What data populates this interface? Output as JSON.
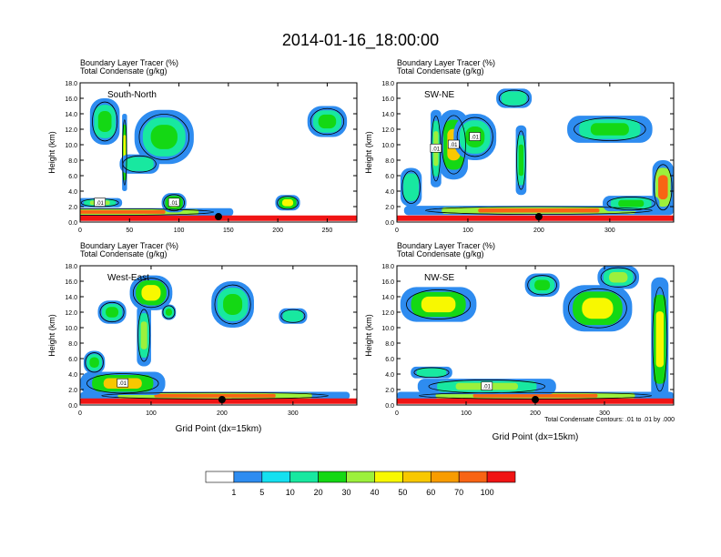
{
  "title": "2014-01-16_18:00:00",
  "panel_line1": "Boundary Layer Tracer    (%)",
  "panel_line2": "Total Condensate    (g/kg)",
  "ylabel": "Height (km)",
  "xlabel": "Grid Point (dx=15km)",
  "contour_note": "Total Condensate Contours: .01 to .01 by .000",
  "colorbar": {
    "colors": [
      "#ffffff",
      "#2e8cf0",
      "#15e0f0",
      "#18e8a0",
      "#14d814",
      "#9cf03c",
      "#f8f800",
      "#f8c800",
      "#f89c00",
      "#f86414",
      "#f01414"
    ],
    "labels": [
      "1",
      "5",
      "10",
      "20",
      "30",
      "40",
      "50",
      "60",
      "70",
      "100"
    ]
  },
  "chart_data": [
    {
      "type": "heatmap",
      "name": "South-North",
      "title": "South-North",
      "xlim": [
        0,
        280
      ],
      "ylim": [
        0,
        18
      ],
      "xticks": [
        "0",
        "50",
        "100",
        "150",
        "200",
        "250"
      ],
      "xtick_values": [
        0,
        50,
        100,
        150,
        200,
        250
      ],
      "yticks": [
        "0.0",
        "2.0",
        "4.0",
        "6.0",
        "8.0",
        "10.0",
        "12.0",
        "14.0",
        "16.0",
        "18.0"
      ],
      "contour_labels": [
        ".01",
        ".01"
      ],
      "marker_x": 140,
      "blobs": [
        {
          "x": 30,
          "y": 1.3,
          "w": 250,
          "h": 1.0,
          "v": 70
        },
        {
          "x": 20,
          "y": 2.5,
          "w": 45,
          "h": 1.2,
          "v": 30
        },
        {
          "x": 95,
          "y": 2.5,
          "w": 25,
          "h": 2.5,
          "v": 40
        },
        {
          "x": 45,
          "y": 9.0,
          "w": 5,
          "h": 10.0,
          "v": 40
        },
        {
          "x": 25,
          "y": 13.0,
          "w": 30,
          "h": 6.0,
          "v": 20
        },
        {
          "x": 85,
          "y": 11.0,
          "w": 60,
          "h": 7.0,
          "v": 20
        },
        {
          "x": 60,
          "y": 7.5,
          "w": 40,
          "h": 2.5,
          "v": 10
        },
        {
          "x": 250,
          "y": 13.0,
          "w": 40,
          "h": 4.0,
          "v": 20
        },
        {
          "x": 210,
          "y": 2.5,
          "w": 25,
          "h": 2.0,
          "v": 40
        }
      ]
    },
    {
      "type": "heatmap",
      "name": "SW-NE",
      "title": "SW-NE",
      "xlim": [
        0,
        390
      ],
      "ylim": [
        0,
        18
      ],
      "xticks": [
        "0",
        "100",
        "200",
        "300"
      ],
      "xtick_values": [
        0,
        100,
        200,
        300
      ],
      "yticks": [
        "0.0",
        "2.0",
        "4.0",
        "6.0",
        "8.0",
        "10.0",
        "12.0",
        "14.0",
        "16.0",
        "18.0"
      ],
      "contour_labels": [
        ".01",
        ".01",
        ".01"
      ],
      "marker_x": 200,
      "blobs": [
        {
          "x": 200,
          "y": 1.5,
          "w": 380,
          "h": 1.2,
          "v": 70
        },
        {
          "x": 80,
          "y": 10.0,
          "w": 40,
          "h": 9.0,
          "v": 50
        },
        {
          "x": 55,
          "y": 9.5,
          "w": 15,
          "h": 10.0,
          "v": 30
        },
        {
          "x": 110,
          "y": 11.0,
          "w": 60,
          "h": 6.0,
          "v": 20
        },
        {
          "x": 175,
          "y": 8.0,
          "w": 15,
          "h": 9.0,
          "v": 20
        },
        {
          "x": 165,
          "y": 16.0,
          "w": 50,
          "h": 2.5,
          "v": 10
        },
        {
          "x": 300,
          "y": 12.0,
          "w": 120,
          "h": 3.5,
          "v": 20
        },
        {
          "x": 375,
          "y": 4.5,
          "w": 30,
          "h": 7.0,
          "v": 70
        },
        {
          "x": 330,
          "y": 2.4,
          "w": 80,
          "h": 2.0,
          "v": 20
        },
        {
          "x": 20,
          "y": 4.5,
          "w": 30,
          "h": 5.0,
          "v": 10
        }
      ]
    },
    {
      "type": "heatmap",
      "name": "West-East",
      "title": "West-East",
      "xlim": [
        0,
        390
      ],
      "ylim": [
        0,
        18
      ],
      "xticks": [
        "0",
        "100",
        "200",
        "300"
      ],
      "xtick_values": [
        0,
        100,
        200,
        300
      ],
      "yticks": [
        "0.0",
        "2.0",
        "4.0",
        "6.0",
        "8.0",
        "10.0",
        "12.0",
        "14.0",
        "16.0",
        "18.0"
      ],
      "contour_labels": [
        ".01"
      ],
      "marker_x": 200,
      "blobs": [
        {
          "x": 190,
          "y": 1.2,
          "w": 380,
          "h": 1.0,
          "v": 70
        },
        {
          "x": 60,
          "y": 2.8,
          "w": 120,
          "h": 3.0,
          "v": 50
        },
        {
          "x": 100,
          "y": 14.5,
          "w": 60,
          "h": 4.5,
          "v": 40
        },
        {
          "x": 45,
          "y": 12.0,
          "w": 40,
          "h": 3.0,
          "v": 20
        },
        {
          "x": 90,
          "y": 9.0,
          "w": 20,
          "h": 8.0,
          "v": 30
        },
        {
          "x": 215,
          "y": 13.0,
          "w": 60,
          "h": 6.0,
          "v": 20
        },
        {
          "x": 300,
          "y": 11.5,
          "w": 40,
          "h": 2.0,
          "v": 10
        },
        {
          "x": 20,
          "y": 5.5,
          "w": 30,
          "h": 3.0,
          "v": 20
        },
        {
          "x": 125,
          "y": 12.0,
          "w": 20,
          "h": 2.0,
          "v": 20
        }
      ]
    },
    {
      "type": "heatmap",
      "name": "NW-SE",
      "title": "NW-SE",
      "xlim": [
        0,
        400
      ],
      "ylim": [
        0,
        18
      ],
      "xticks": [
        "0",
        "100",
        "200",
        "300"
      ],
      "xtick_values": [
        0,
        100,
        200,
        300
      ],
      "yticks": [
        "0.0",
        "2.0",
        "4.0",
        "6.0",
        "8.0",
        "10.0",
        "12.0",
        "14.0",
        "16.0",
        "18.0"
      ],
      "contour_labels": [
        ".01"
      ],
      "marker_x": 200,
      "blobs": [
        {
          "x": 200,
          "y": 1.2,
          "w": 400,
          "h": 1.0,
          "v": 70
        },
        {
          "x": 130,
          "y": 2.4,
          "w": 200,
          "h": 2.0,
          "v": 30
        },
        {
          "x": 60,
          "y": 13.0,
          "w": 110,
          "h": 4.5,
          "v": 40
        },
        {
          "x": 290,
          "y": 12.5,
          "w": 100,
          "h": 6.0,
          "v": 40
        },
        {
          "x": 380,
          "y": 8.5,
          "w": 25,
          "h": 16.0,
          "v": 40
        },
        {
          "x": 210,
          "y": 15.5,
          "w": 50,
          "h": 3.0,
          "v": 20
        },
        {
          "x": 320,
          "y": 16.5,
          "w": 60,
          "h": 3.0,
          "v": 30
        },
        {
          "x": 50,
          "y": 4.2,
          "w": 60,
          "h": 1.5,
          "v": 10
        }
      ]
    }
  ]
}
